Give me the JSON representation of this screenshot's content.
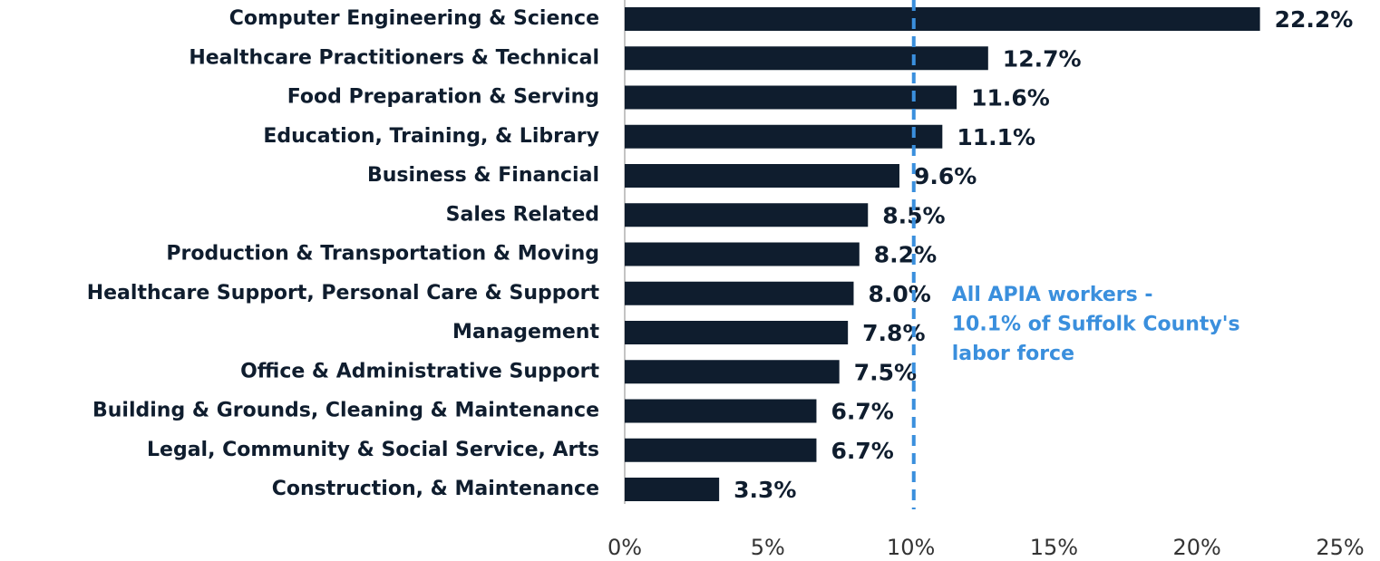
{
  "chart_data": {
    "type": "bar",
    "orientation": "horizontal",
    "categories": [
      "Computer Engineering & Science",
      "Healthcare Practitioners & Technical",
      "Food Preparation & Serving",
      "Education, Training, & Library",
      "Business & Financial",
      "Sales Related",
      "Production & Transportation & Moving",
      "Healthcare Support, Personal Care & Support",
      "Management",
      "Office & Administrative Support",
      "Building & Grounds, Cleaning & Maintenance",
      "Legal, Community & Social Service, Arts",
      "Construction, & Maintenance"
    ],
    "values": [
      22.2,
      12.7,
      11.6,
      11.1,
      9.6,
      8.5,
      8.2,
      8.0,
      7.8,
      7.5,
      6.7,
      6.7,
      3.3
    ],
    "value_labels": [
      "22.2%",
      "12.7%",
      "11.6%",
      "11.1%",
      "9.6%",
      "8.5%",
      "8.2%",
      "8.0%",
      "7.8%",
      "7.5%",
      "6.7%",
      "6.7%",
      "3.3%"
    ],
    "color": "#0f1d2e",
    "xlim": [
      0,
      25
    ],
    "xticks": [
      {
        "value": 0,
        "label": "0%"
      },
      {
        "value": 5,
        "label": "5%"
      },
      {
        "value": 10,
        "label": "10%"
      },
      {
        "value": 15,
        "label": "15%"
      },
      {
        "value": 20,
        "label": "20%"
      },
      {
        "value": 25,
        "label": "25%"
      }
    ],
    "reference_line": {
      "value": 10.1,
      "color": "#3a8fdd",
      "label_lines": [
        "All APIA workers -",
        "10.1% of Suffolk County's",
        "labor force"
      ]
    }
  }
}
